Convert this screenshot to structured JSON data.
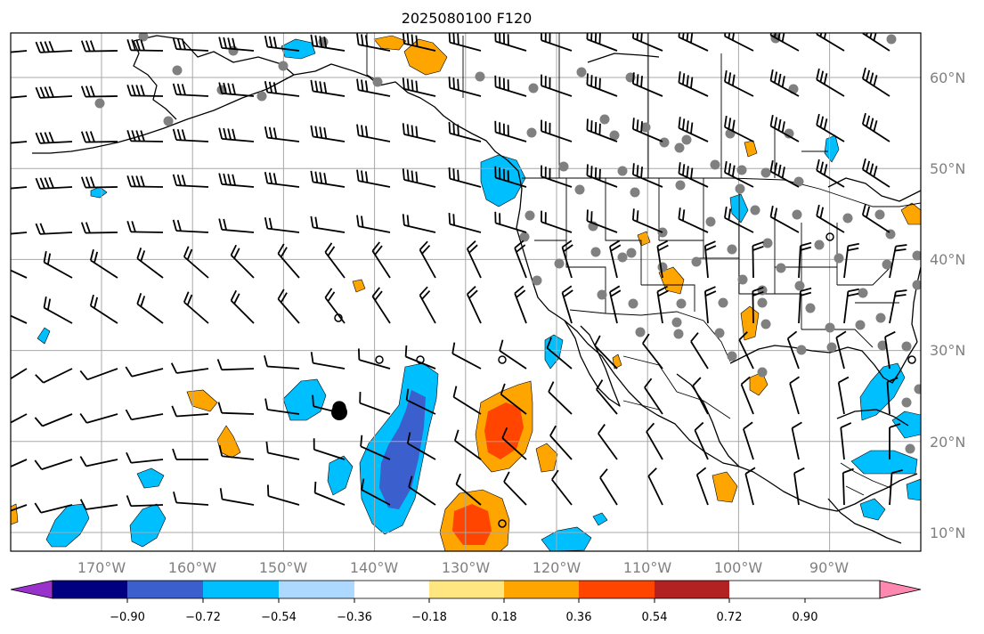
{
  "title": "2025080100 F120",
  "map": {
    "lon_range": [
      -180,
      -80
    ],
    "lat_range": [
      8,
      65
    ],
    "lat_labels": [
      "60°N",
      "50°N",
      "40°N",
      "30°N",
      "20°N",
      "10°N"
    ],
    "lon_labels": [
      "170°W",
      "160°W",
      "150°W",
      "140°W",
      "130°W",
      "120°W",
      "110°W",
      "100°W",
      "90°W"
    ]
  },
  "colorbar": {
    "tick_labels": [
      "−0.90",
      "−0.72",
      "−0.54",
      "−0.36",
      "−0.18",
      "0.18",
      "0.36",
      "0.54",
      "0.72",
      "0.90"
    ],
    "colors": [
      "#9932cc",
      "#000080",
      "#3b5fcc",
      "#00bfff",
      "#add8ff",
      "#ffffff",
      "#ffe680",
      "#ffa500",
      "#ff4500",
      "#b22222",
      "#ff88b0"
    ]
  }
}
